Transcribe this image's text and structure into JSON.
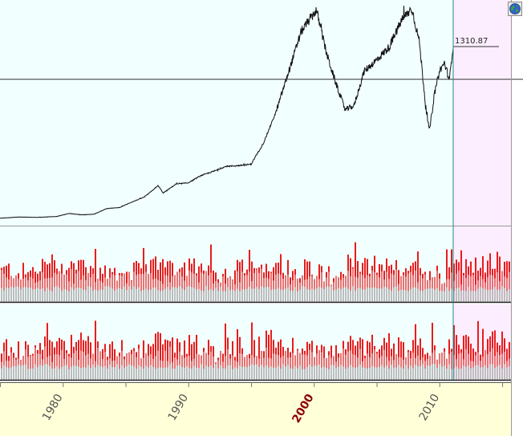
{
  "chart_data": {
    "type": "line",
    "x_axis": {
      "min": 1975.0,
      "max": 2015.7,
      "tick_labels": [
        "1980",
        "1990",
        "2000",
        "2010"
      ],
      "highlighted_tick": "2000",
      "minor_step": 5
    },
    "price_panel": {
      "y_min": 40,
      "y_max": 1620,
      "last_value_label": "1310.87",
      "last_value": 1310.87,
      "reference_level": 1065,
      "projection_start_year": 2011.1,
      "series": [
        [
          1975.0,
          92
        ],
        [
          1976.5,
          100
        ],
        [
          1978.0,
          98
        ],
        [
          1979.5,
          104
        ],
        [
          1980.5,
          125
        ],
        [
          1981.5,
          116
        ],
        [
          1982.5,
          120
        ],
        [
          1983.5,
          160
        ],
        [
          1984.5,
          166
        ],
        [
          1985.5,
          205
        ],
        [
          1986.5,
          240
        ],
        [
          1987.6,
          320
        ],
        [
          1988.0,
          268
        ],
        [
          1989.0,
          330
        ],
        [
          1990.0,
          340
        ],
        [
          1991.0,
          390
        ],
        [
          1992.0,
          420
        ],
        [
          1993.0,
          455
        ],
        [
          1994.0,
          460
        ],
        [
          1995.0,
          470
        ],
        [
          1996.0,
          620
        ],
        [
          1997.0,
          840
        ],
        [
          1998.0,
          1120
        ],
        [
          1999.0,
          1400
        ],
        [
          2000.2,
          1550
        ],
        [
          2001.0,
          1250
        ],
        [
          2001.7,
          1050
        ],
        [
          2002.5,
          850
        ],
        [
          2003.2,
          880
        ],
        [
          2004.0,
          1120
        ],
        [
          2005.0,
          1200
        ],
        [
          2006.0,
          1290
        ],
        [
          2007.0,
          1480
        ],
        [
          2007.8,
          1560
        ],
        [
          2008.4,
          1330
        ],
        [
          2008.9,
          880
        ],
        [
          2009.2,
          700
        ],
        [
          2009.6,
          960
        ],
        [
          2010.0,
          1120
        ],
        [
          2010.4,
          1180
        ],
        [
          2010.8,
          1060
        ],
        [
          2011.1,
          1310.87
        ]
      ]
    },
    "volume_panels": [
      {
        "series": "red_bars_over_gray"
      },
      {
        "series": "red_bars_over_gray"
      }
    ]
  },
  "colors": {
    "chart_background": "#f2ffff",
    "projection_area": "#fdeeff",
    "axis_background": "#ffffd8",
    "price_line": "#111111",
    "volume_red": "#e81c1c",
    "volume_pink": "#e87272",
    "volume_gray": "#bdbdbd",
    "cursor_line": "#1f8a8a",
    "year_label_highlight": "#8b0000"
  },
  "icons": {
    "corner": "globe-icon"
  }
}
